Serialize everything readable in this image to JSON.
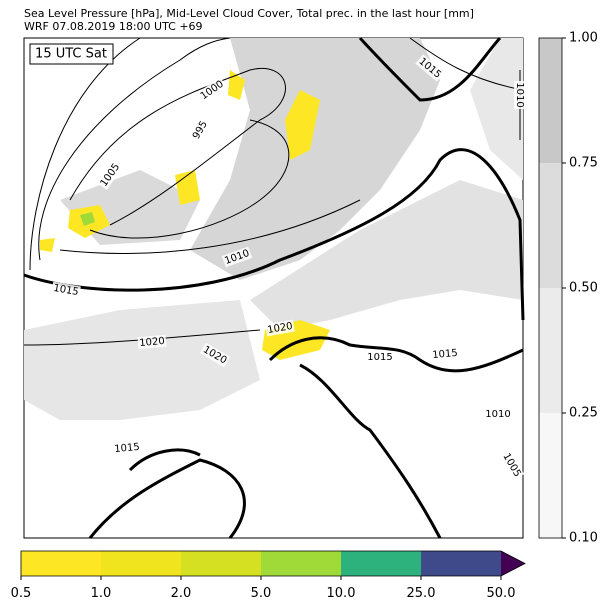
{
  "header": {
    "title_lines": [
      "Sea Level Pressure [hPa], Mid-Level Cloud Cover, Total prec. in the last hour [mm]",
      "WRF 07.08.2019 18:00 UTC +69"
    ]
  },
  "map": {
    "time_label": "15 UTC Sat",
    "contour_labels": [
      "1015",
      "1010",
      "1000",
      "995",
      "1005",
      "1010",
      "1015",
      "1020",
      "1020",
      "1020",
      "1015",
      "1015",
      "1010",
      "1005",
      "1015"
    ]
  },
  "cloud_colorbar": {
    "tick_labels": [
      "1.00",
      "0.75",
      "0.50",
      "0.25",
      "0.10"
    ]
  },
  "precip_colorbar": {
    "tick_labels": [
      "0.5",
      "1.0",
      "2.0",
      "5.0",
      "10.0",
      "25.0",
      "50.0"
    ]
  }
}
